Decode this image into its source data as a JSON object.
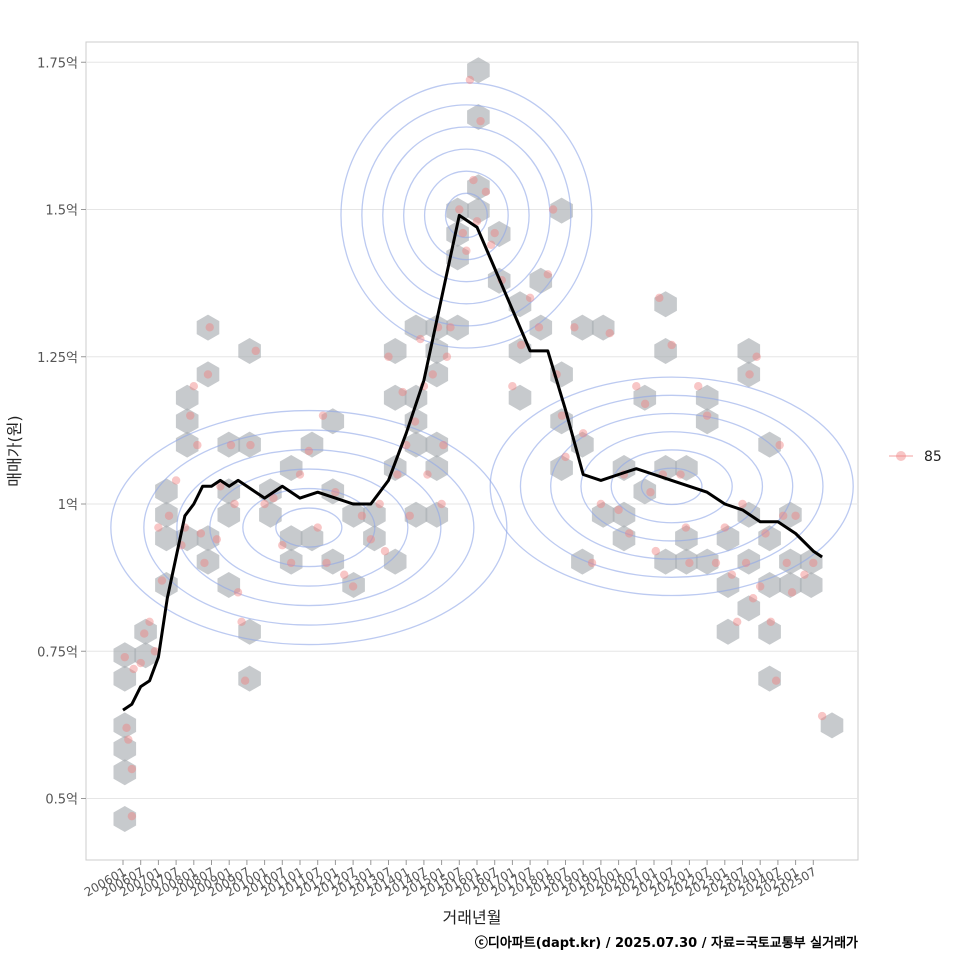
{
  "chart_data": {
    "type": "scatter",
    "xlabel": "거래년월",
    "ylabel": "매매가(원)",
    "caption": "ⓒ디아파트(dapt.kr) / 2025.07.30 / 자료=국토교통부 실거래가",
    "ylim": [
      0.4,
      1.8
    ],
    "y_ticks": [
      {
        "value": 0.5,
        "label": "0.5억"
      },
      {
        "value": 0.75,
        "label": "0.75억"
      },
      {
        "value": 1.0,
        "label": "1억"
      },
      {
        "value": 1.25,
        "label": "1.25억"
      },
      {
        "value": 1.5,
        "label": "1.5억"
      },
      {
        "value": 1.75,
        "label": "1.75억"
      }
    ],
    "x_ticks": [
      "200601",
      "200607",
      "200701",
      "200707",
      "200801",
      "200807",
      "200901",
      "200907",
      "201001",
      "201007",
      "201101",
      "201107",
      "201201",
      "201207",
      "201301",
      "201307",
      "201401",
      "201407",
      "201501",
      "201507",
      "201601",
      "201607",
      "201701",
      "201707",
      "201801",
      "201807",
      "201901",
      "201907",
      "202001",
      "202007",
      "202101",
      "202107",
      "202201",
      "202207",
      "202301",
      "202307",
      "202401",
      "202407",
      "202501",
      "202507"
    ],
    "legend": {
      "position": "right",
      "entries": [
        {
          "label": "85",
          "color": "#f08080"
        }
      ]
    },
    "grid": true,
    "colors": {
      "points": "#f08080",
      "trend": "#000000",
      "contour": "#8fa6e8",
      "hex": "#a9adb2",
      "grid": "#e6e6e6"
    },
    "series": [
      {
        "kind": "moving-average-line",
        "x": [
          0,
          0.5,
          1,
          1.5,
          2,
          2.5,
          3,
          3.5,
          4,
          4.5,
          5,
          5.5,
          6,
          6.5,
          7,
          7.5,
          8,
          9,
          10,
          11,
          12,
          13,
          14,
          15,
          16,
          17,
          18,
          19,
          20,
          21,
          22,
          23,
          24,
          25,
          26,
          27,
          28,
          29,
          30,
          31,
          32,
          33,
          34,
          35,
          36,
          37,
          38,
          39,
          39.5
        ],
        "y": [
          0.65,
          0.66,
          0.69,
          0.7,
          0.74,
          0.84,
          0.91,
          0.98,
          1.0,
          1.03,
          1.03,
          1.04,
          1.03,
          1.04,
          1.03,
          1.02,
          1.01,
          1.03,
          1.01,
          1.02,
          1.01,
          1.0,
          1.0,
          1.04,
          1.12,
          1.21,
          1.35,
          1.49,
          1.47,
          1.4,
          1.33,
          1.26,
          1.26,
          1.16,
          1.05,
          1.04,
          1.05,
          1.06,
          1.05,
          1.04,
          1.03,
          1.02,
          1.0,
          0.99,
          0.97,
          0.97,
          0.95,
          0.92,
          0.91
        ]
      },
      {
        "kind": "transactions",
        "name": "85",
        "points": [
          [
            0.1,
            0.74
          ],
          [
            0.2,
            0.62
          ],
          [
            0.3,
            0.6
          ],
          [
            0.5,
            0.55
          ],
          [
            0.6,
            0.72
          ],
          [
            0.5,
            0.47
          ],
          [
            1.0,
            0.73
          ],
          [
            1.2,
            0.78
          ],
          [
            1.5,
            0.8
          ],
          [
            1.8,
            0.75
          ],
          [
            2.0,
            0.96
          ],
          [
            2.2,
            0.87
          ],
          [
            2.6,
            0.98
          ],
          [
            3.0,
            1.04
          ],
          [
            3.3,
            0.93
          ],
          [
            3.5,
            0.96
          ],
          [
            3.8,
            1.15
          ],
          [
            4.0,
            1.2
          ],
          [
            4.2,
            1.1
          ],
          [
            4.4,
            0.95
          ],
          [
            4.6,
            0.9
          ],
          [
            4.8,
            1.22
          ],
          [
            4.9,
            1.3
          ],
          [
            5.3,
            0.94
          ],
          [
            5.5,
            1.03
          ],
          [
            6.1,
            1.1
          ],
          [
            6.3,
            1.0
          ],
          [
            6.5,
            0.85
          ],
          [
            6.7,
            0.8
          ],
          [
            6.9,
            0.7
          ],
          [
            7.2,
            1.1
          ],
          [
            7.5,
            1.26
          ],
          [
            8.0,
            1.0
          ],
          [
            8.5,
            1.01
          ],
          [
            9.0,
            0.93
          ],
          [
            9.5,
            0.9
          ],
          [
            10.0,
            1.05
          ],
          [
            10.5,
            1.09
          ],
          [
            11.0,
            0.96
          ],
          [
            11.3,
            1.15
          ],
          [
            11.5,
            0.9
          ],
          [
            12.0,
            1.02
          ],
          [
            12.5,
            0.88
          ],
          [
            13.0,
            0.86
          ],
          [
            13.5,
            0.98
          ],
          [
            14.0,
            0.94
          ],
          [
            14.5,
            1.0
          ],
          [
            14.8,
            0.92
          ],
          [
            15.0,
            1.25
          ],
          [
            15.5,
            1.05
          ],
          [
            15.8,
            1.19
          ],
          [
            16.0,
            1.1
          ],
          [
            16.2,
            0.98
          ],
          [
            16.5,
            1.14
          ],
          [
            16.8,
            1.28
          ],
          [
            17.0,
            1.2
          ],
          [
            17.2,
            1.05
          ],
          [
            17.5,
            1.22
          ],
          [
            17.8,
            1.3
          ],
          [
            18.0,
            1.0
          ],
          [
            18.1,
            1.1
          ],
          [
            18.3,
            1.25
          ],
          [
            18.5,
            1.3
          ],
          [
            19.0,
            1.5
          ],
          [
            19.2,
            1.46
          ],
          [
            19.4,
            1.43
          ],
          [
            19.6,
            1.72
          ],
          [
            19.8,
            1.55
          ],
          [
            20.0,
            1.48
          ],
          [
            20.2,
            1.65
          ],
          [
            20.5,
            1.53
          ],
          [
            20.8,
            1.44
          ],
          [
            21.0,
            1.46
          ],
          [
            21.4,
            1.38
          ],
          [
            22.0,
            1.2
          ],
          [
            22.5,
            1.27
          ],
          [
            23.0,
            1.35
          ],
          [
            23.5,
            1.3
          ],
          [
            24.0,
            1.39
          ],
          [
            24.3,
            1.5
          ],
          [
            24.5,
            1.22
          ],
          [
            24.8,
            1.15
          ],
          [
            25.0,
            1.08
          ],
          [
            25.5,
            1.3
          ],
          [
            26.0,
            1.12
          ],
          [
            26.5,
            0.9
          ],
          [
            27.0,
            1.0
          ],
          [
            27.5,
            1.29
          ],
          [
            28.0,
            0.99
          ],
          [
            28.3,
            1.05
          ],
          [
            28.6,
            0.95
          ],
          [
            29.0,
            1.2
          ],
          [
            29.5,
            1.17
          ],
          [
            29.8,
            1.02
          ],
          [
            30.1,
            0.92
          ],
          [
            30.3,
            1.35
          ],
          [
            30.5,
            1.05
          ],
          [
            31.0,
            1.27
          ],
          [
            31.5,
            1.05
          ],
          [
            31.8,
            0.96
          ],
          [
            32.0,
            0.9
          ],
          [
            32.5,
            1.2
          ],
          [
            33.0,
            1.15
          ],
          [
            33.5,
            0.9
          ],
          [
            34.0,
            0.96
          ],
          [
            34.4,
            0.88
          ],
          [
            34.7,
            0.8
          ],
          [
            35.0,
            1.0
          ],
          [
            35.2,
            0.9
          ],
          [
            35.4,
            1.22
          ],
          [
            35.6,
            0.84
          ],
          [
            35.8,
            1.25
          ],
          [
            36.0,
            0.86
          ],
          [
            36.3,
            0.95
          ],
          [
            36.6,
            0.8
          ],
          [
            36.9,
            0.7
          ],
          [
            37.1,
            1.1
          ],
          [
            37.3,
            0.98
          ],
          [
            37.5,
            0.9
          ],
          [
            37.8,
            0.85
          ],
          [
            38.0,
            0.98
          ],
          [
            38.5,
            0.88
          ],
          [
            39.0,
            0.9
          ],
          [
            39.5,
            0.64
          ]
        ]
      }
    ]
  }
}
